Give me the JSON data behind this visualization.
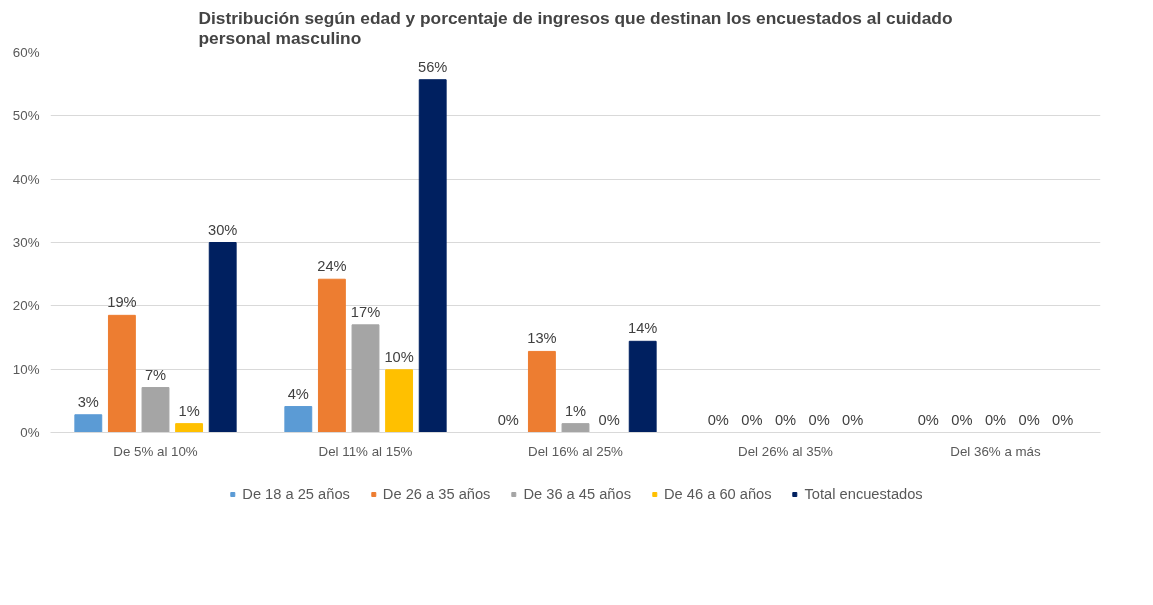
{
  "chart_data": {
    "type": "bar",
    "title": "Distribución según edad y porcentaje de ingresos que destinan los encuestados al cuidado personal masculino",
    "categories": [
      "De 5% al 10%",
      "Del 11% al 15%",
      "Del 16% al 25%",
      "Del 26% al 35%",
      "Del 36% a más"
    ],
    "series": [
      {
        "name": "De 18 a 25 años",
        "color": "#5b9bd5",
        "values": [
          2.8,
          4.1,
          0,
          0,
          0
        ],
        "value_labels": [
          "3%",
          "4%",
          "0%",
          "0%",
          "0%"
        ]
      },
      {
        "name": "De 26 a 35 años",
        "color": "#ed7d31",
        "values": [
          18.5,
          24.2,
          12.8,
          0,
          0
        ],
        "value_labels": [
          "19%",
          "24%",
          "13%",
          "0%",
          "0%"
        ]
      },
      {
        "name": "De 36 a 45 años",
        "color": "#a5a5a5",
        "values": [
          7.1,
          17.0,
          1.4,
          0,
          0
        ],
        "value_labels": [
          "7%",
          "17%",
          "1%",
          "0%",
          "0%"
        ]
      },
      {
        "name": "De 46 a 60 años",
        "color": "#ffc000",
        "values": [
          1.4,
          9.9,
          0,
          0,
          0
        ],
        "value_labels": [
          "1%",
          "10%",
          "0%",
          "0%",
          "0%"
        ]
      },
      {
        "name": "Total encuestados",
        "color": "#002060",
        "values": [
          30.0,
          55.7,
          14.4,
          0,
          0
        ],
        "value_labels": [
          "30%",
          "56%",
          "14%",
          "0%",
          "0%"
        ]
      }
    ],
    "ylim": [
      0,
      60
    ],
    "yticks": [
      {
        "value": 0,
        "label": "0%"
      },
      {
        "value": 10,
        "label": "10%"
      },
      {
        "value": 20,
        "label": "20%"
      },
      {
        "value": 30,
        "label": "30%"
      },
      {
        "value": 40,
        "label": "40%"
      },
      {
        "value": 50,
        "label": "50%"
      },
      {
        "value": 60,
        "label": "60%"
      }
    ],
    "grid": "y",
    "legend": "bottom"
  }
}
